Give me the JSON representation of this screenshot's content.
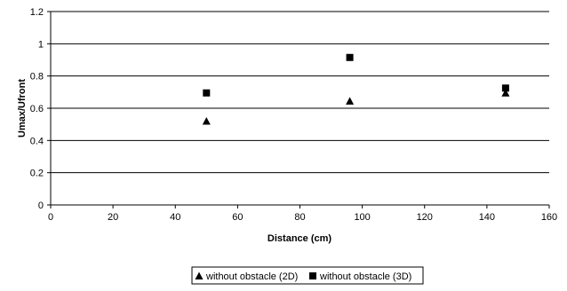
{
  "chart_data": {
    "type": "scatter",
    "xlabel": "Distance (cm)",
    "ylabel": "Umax/Ufront",
    "xlim": [
      0,
      160
    ],
    "ylim": [
      0,
      1.2
    ],
    "x_ticks": [
      "0",
      "20",
      "40",
      "60",
      "80",
      "100",
      "120",
      "140",
      "160"
    ],
    "y_ticks": [
      "0",
      "0.2",
      "0.4",
      "0.6",
      "0.8",
      "1",
      "1.2"
    ],
    "grid": "horizontal",
    "legend_position": "bottom",
    "series": [
      {
        "name": "without obstacle (2D)",
        "marker": "triangle",
        "color": "#000000",
        "x": [
          50,
          96,
          146
        ],
        "y": [
          0.52,
          0.645,
          0.695
        ]
      },
      {
        "name": "without obstacle (3D)",
        "marker": "square",
        "color": "#000000",
        "x": [
          50,
          96,
          146
        ],
        "y": [
          0.695,
          0.915,
          0.725
        ]
      }
    ]
  }
}
